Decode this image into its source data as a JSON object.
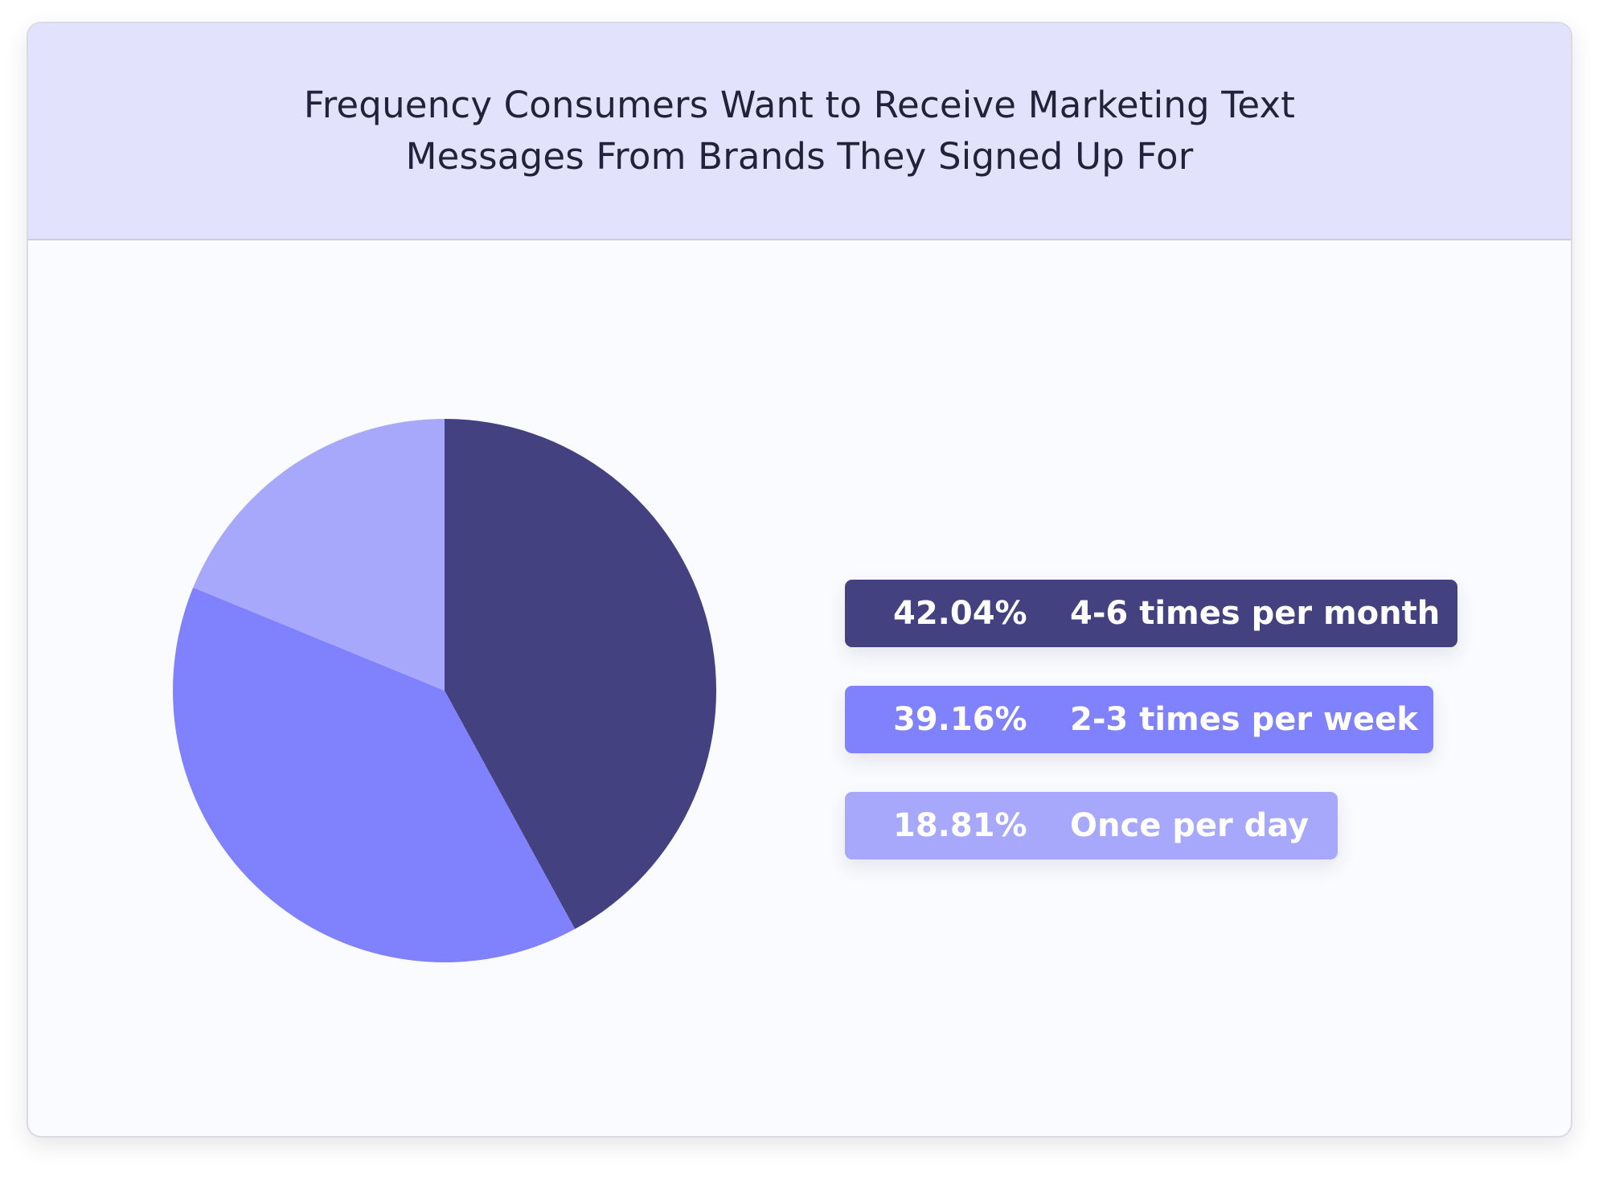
{
  "chart_data": {
    "type": "pie",
    "title": "Frequency Consumers Want to Receive Marketing Text Messages From Brands They Signed Up For",
    "slices": [
      {
        "label": "4-6 times per month",
        "value": 42.04,
        "value_label": "42.04%",
        "color": "#434180"
      },
      {
        "label": "2-3 times per week",
        "value": 39.16,
        "value_label": "39.16%",
        "color": "#8081fd"
      },
      {
        "label": "Once per day",
        "value": 18.81,
        "value_label": "18.81%",
        "color": "#a7a8fc"
      }
    ],
    "start": "12 o'clock",
    "direction": "clockwise",
    "legend_placement": "right"
  },
  "colors": {
    "header_bg": "#e2e2fd",
    "card_bg": "#fafbfe",
    "title_text": "#22223a"
  }
}
